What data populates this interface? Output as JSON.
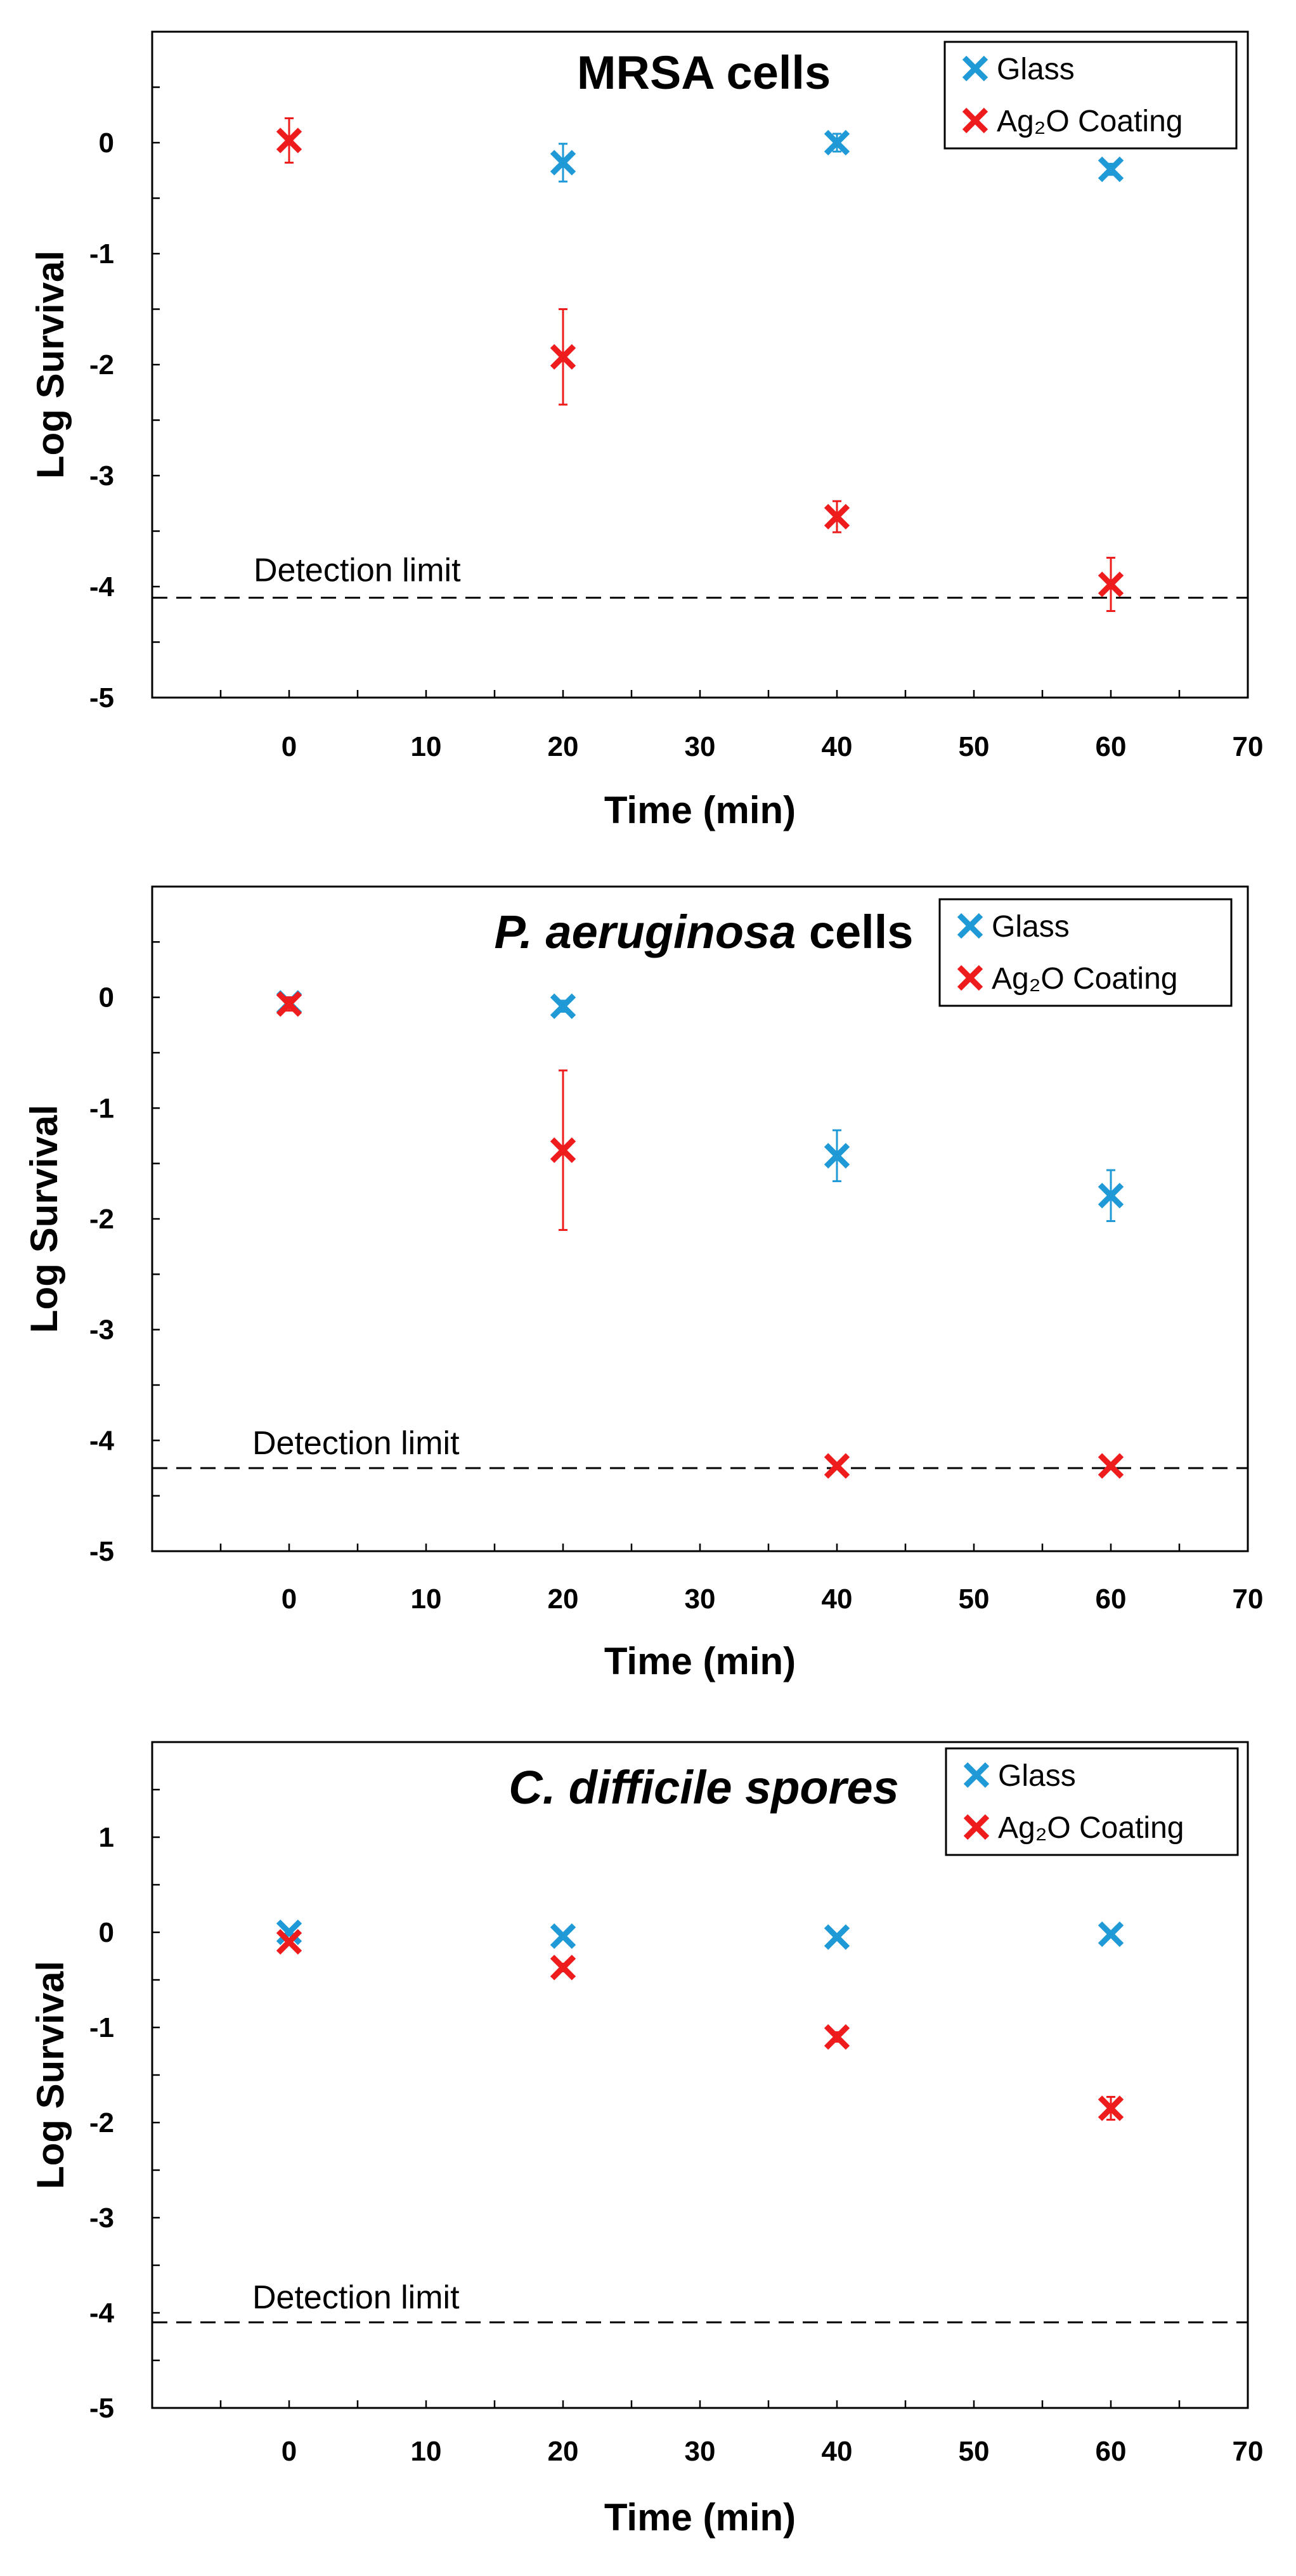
{
  "chart_data": [
    {
      "type": "scatter",
      "title": "MRSA cells",
      "title_italic": false,
      "xlabel": "Time (min)",
      "ylabel": "Log Survival",
      "xlim": [
        -10,
        70
      ],
      "ylim": [
        -5,
        1
      ],
      "xticks": [
        0,
        10,
        20,
        30,
        40,
        50,
        60,
        70
      ],
      "yticks": [
        0,
        -1,
        -2,
        -3,
        -4,
        -5
      ],
      "detection_limit": {
        "label": "Detection limit",
        "value": -4.1
      },
      "legend_position": "top-right",
      "series": [
        {
          "name": "Glass",
          "color": "#1f9ad6",
          "points": [
            {
              "x": 20,
              "y": -0.18,
              "err": 0.17
            },
            {
              "x": 40,
              "y": 0.0,
              "err": 0.08
            },
            {
              "x": 60,
              "y": -0.24,
              "err": 0.05
            }
          ]
        },
        {
          "name": "Ag₂O Coating",
          "color": "#ee1c1c",
          "points": [
            {
              "x": 0,
              "y": 0.02,
              "err": 0.2
            },
            {
              "x": 20,
              "y": -1.93,
              "err": 0.43
            },
            {
              "x": 40,
              "y": -3.37,
              "err": 0.14
            },
            {
              "x": 60,
              "y": -3.98,
              "err": 0.24
            }
          ]
        }
      ]
    },
    {
      "type": "scatter",
      "title": "P. aeruginosa cells",
      "title_italic_part": "P. aeruginosa",
      "title_plain_part": " cells",
      "xlabel": "Time (min)",
      "ylabel": "Log Survival",
      "xlim": [
        -10,
        70
      ],
      "ylim": [
        -5,
        1
      ],
      "xticks": [
        0,
        10,
        20,
        30,
        40,
        50,
        60,
        70
      ],
      "yticks": [
        0,
        -1,
        -2,
        -3,
        -4,
        -5
      ],
      "detection_limit": {
        "label": "Detection limit",
        "value": -4.25
      },
      "legend_position": "top-right",
      "series": [
        {
          "name": "Glass",
          "color": "#1f9ad6",
          "points": [
            {
              "x": 0,
              "y": -0.05,
              "err": 0.05
            },
            {
              "x": 20,
              "y": -0.08,
              "err": 0.05
            },
            {
              "x": 40,
              "y": -1.43,
              "err": 0.23
            },
            {
              "x": 60,
              "y": -1.79,
              "err": 0.23
            }
          ]
        },
        {
          "name": "Ag₂O Coating",
          "color": "#ee1c1c",
          "points": [
            {
              "x": 0,
              "y": -0.06,
              "err": 0.06
            },
            {
              "x": 20,
              "y": -1.38,
              "err": 0.72
            },
            {
              "x": 40,
              "y": -4.23,
              "err": 0.0
            },
            {
              "x": 60,
              "y": -4.23,
              "err": 0.0
            }
          ]
        }
      ]
    },
    {
      "type": "scatter",
      "title": "C. difficile spores",
      "title_italic": true,
      "xlabel": "Time (min)",
      "ylabel": "Log Survival",
      "xlim": [
        -10,
        70
      ],
      "ylim": [
        -5,
        2
      ],
      "xticks": [
        0,
        10,
        20,
        30,
        40,
        50,
        60,
        70
      ],
      "yticks": [
        1,
        0,
        -1,
        -2,
        -3,
        -4,
        -5
      ],
      "detection_limit": {
        "label": "Detection limit",
        "value": -4.1
      },
      "legend_position": "top-right",
      "series": [
        {
          "name": "Glass",
          "color": "#1f9ad6",
          "points": [
            {
              "x": 0,
              "y": 0.0,
              "err": 0.02
            },
            {
              "x": 20,
              "y": -0.04,
              "err": 0.02
            },
            {
              "x": 40,
              "y": -0.05,
              "err": 0.02
            },
            {
              "x": 60,
              "y": -0.02,
              "err": 0.02
            }
          ]
        },
        {
          "name": "Ag₂O Coating",
          "color": "#ee1c1c",
          "points": [
            {
              "x": 0,
              "y": -0.1,
              "err": 0.03
            },
            {
              "x": 20,
              "y": -0.37,
              "err": 0.04
            },
            {
              "x": 40,
              "y": -1.1,
              "err": 0.05
            },
            {
              "x": 60,
              "y": -1.85,
              "err": 0.12
            }
          ]
        }
      ]
    }
  ]
}
